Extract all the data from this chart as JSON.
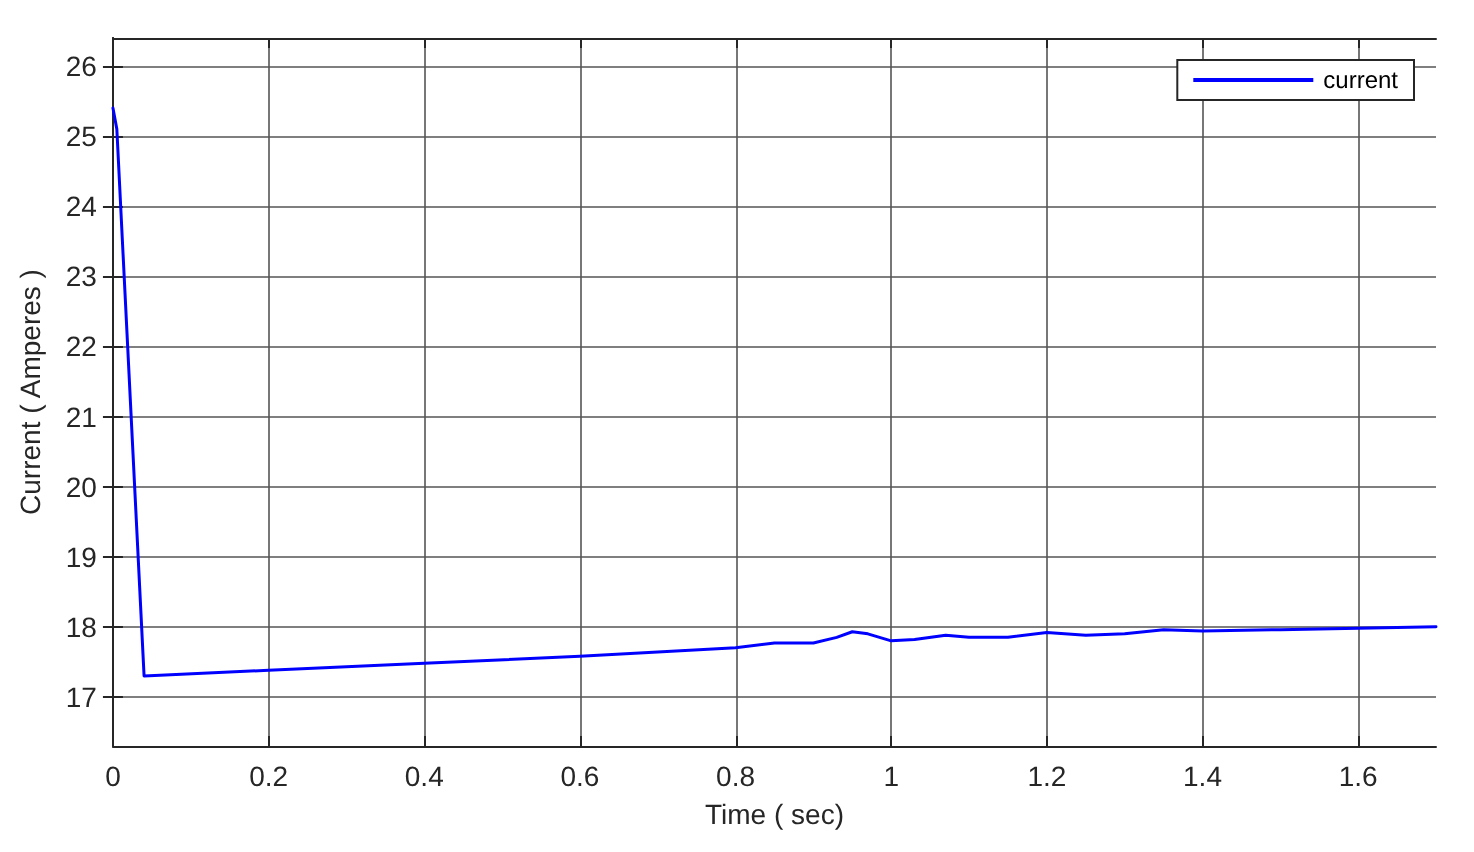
{
  "chart_data": {
    "type": "line",
    "xlabel": "Time ( sec)",
    "ylabel": "Current ( Amperes )",
    "xlim": [
      0,
      1.7
    ],
    "xticks": [
      0,
      0.2,
      0.4,
      0.6,
      0.8,
      1,
      1.2,
      1.4,
      1.6
    ],
    "ylim": [
      16.3,
      26.4
    ],
    "yticks": [
      17,
      18,
      19,
      20,
      21,
      22,
      23,
      24,
      25,
      26
    ],
    "grid": true,
    "legend": "top right",
    "marker": "none",
    "line_style": "solid",
    "series": [
      {
        "name": "current",
        "color": "#0000ff",
        "x": [
          0,
          0.005,
          0.04,
          0.2,
          0.4,
          0.6,
          0.8,
          0.85,
          0.9,
          0.93,
          0.95,
          0.97,
          1.0,
          1.03,
          1.07,
          1.1,
          1.15,
          1.2,
          1.25,
          1.3,
          1.35,
          1.4,
          1.5,
          1.6,
          1.7
        ],
        "values": [
          25.4,
          25.1,
          17.3,
          17.38,
          17.48,
          17.58,
          17.7,
          17.77,
          17.77,
          17.85,
          17.93,
          17.9,
          17.8,
          17.82,
          17.88,
          17.85,
          17.85,
          17.92,
          17.88,
          17.9,
          17.96,
          17.94,
          17.96,
          17.98,
          18.0
        ]
      }
    ]
  }
}
